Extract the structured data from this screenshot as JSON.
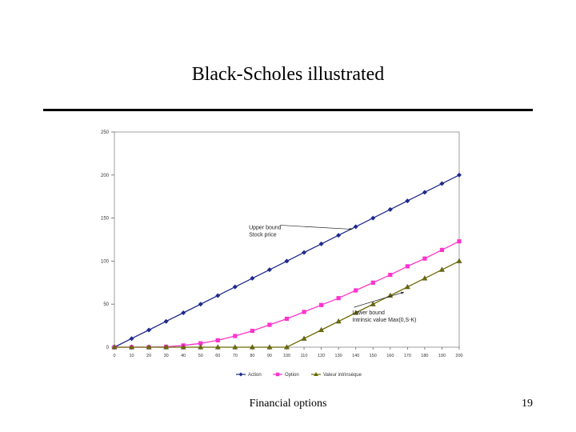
{
  "slide": {
    "title": "Black-Scholes illustrated",
    "footer_text": "Financial options",
    "page_number": "19"
  },
  "chart_data": {
    "type": "line",
    "x": [
      0,
      10,
      20,
      30,
      40,
      50,
      60,
      70,
      80,
      90,
      100,
      110,
      120,
      130,
      140,
      150,
      160,
      170,
      180,
      190,
      200
    ],
    "xlabel": "",
    "ylabel": "",
    "xlim": [
      0,
      200
    ],
    "ylim": [
      0,
      250
    ],
    "yticks": [
      0,
      50,
      100,
      150,
      200,
      250
    ],
    "grid": false,
    "legend_position": "bottom",
    "series": [
      {
        "name": "Action",
        "color": "#1f2a8c",
        "marker": "diamond",
        "values": [
          0,
          10,
          20,
          30,
          40,
          50,
          60,
          70,
          80,
          90,
          100,
          110,
          120,
          130,
          140,
          150,
          160,
          170,
          180,
          190,
          200
        ]
      },
      {
        "name": "Option",
        "color": "#ff33cc",
        "marker": "square",
        "values": [
          0,
          0,
          0,
          0.5,
          2,
          4.5,
          8,
          13,
          19,
          26,
          33,
          41,
          49,
          57,
          66,
          75,
          84,
          94,
          103,
          113,
          123
        ]
      },
      {
        "name": "Valeur intrinsèque",
        "color": "#6b6b00",
        "marker": "triangle",
        "values": [
          0,
          0,
          0,
          0,
          0,
          0,
          0,
          0,
          0,
          0,
          0,
          10,
          20,
          30,
          40,
          50,
          60,
          70,
          80,
          90,
          100
        ]
      }
    ],
    "annotations": [
      {
        "lines": [
          "Upper bound",
          "Stock price"
        ],
        "x": 78,
        "y": 137,
        "arrow_to": [
          138,
          137
        ]
      },
      {
        "lines": [
          "Lower bound",
          "Intrinsic value Max(0,S-K)"
        ],
        "x": 138,
        "y": 38,
        "arrow_to": [
          168,
          64
        ]
      }
    ]
  }
}
